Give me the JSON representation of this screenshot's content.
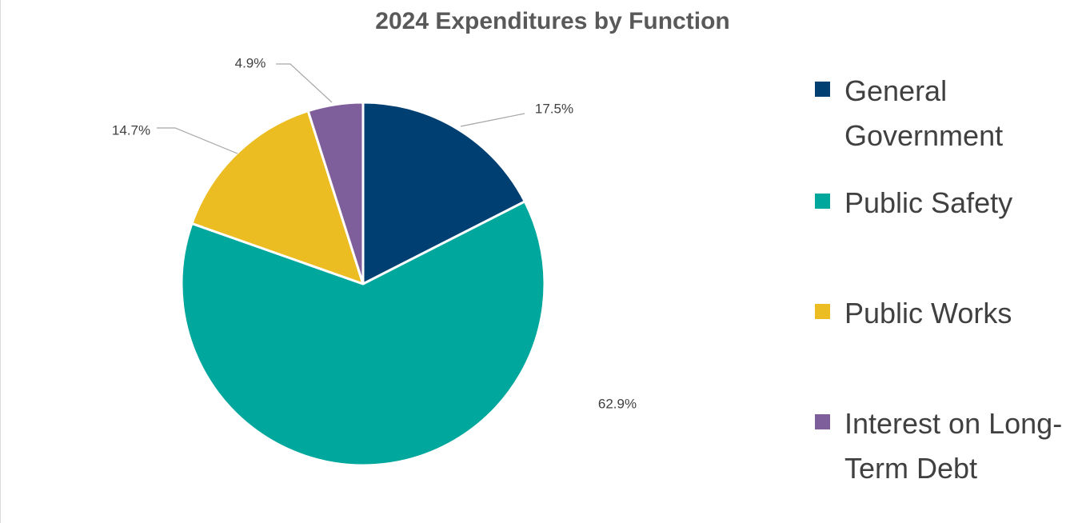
{
  "chart_data": {
    "type": "pie",
    "title": "2024 Expenditures by Function",
    "categories": [
      "General Government",
      "Public Safety",
      "Public Works",
      "Interest on Long-Term Debt"
    ],
    "values": [
      17.5,
      62.9,
      14.7,
      4.9
    ],
    "data_labels": [
      "17.5%",
      "62.9%",
      "14.7%",
      "4.9%"
    ],
    "colors": [
      "#003f72",
      "#00a79d",
      "#ecbd22",
      "#7f5f9b"
    ],
    "start_angle_deg": 0,
    "direction": "clockwise",
    "legend_position": "right"
  }
}
